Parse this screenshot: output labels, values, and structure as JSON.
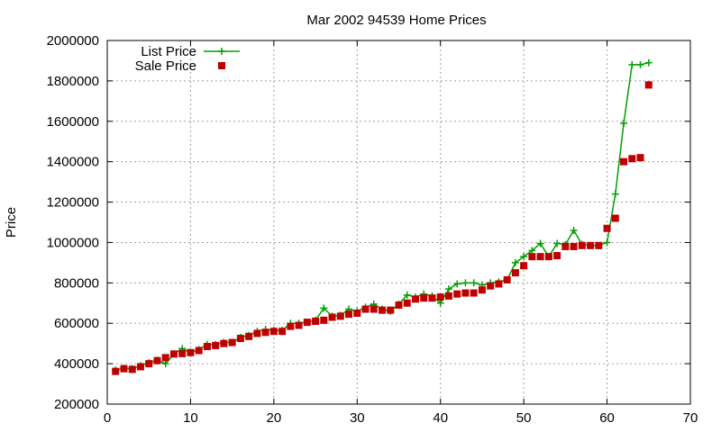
{
  "chart_data": {
    "type": "line",
    "title": "Mar 2002 94539 Home Prices",
    "xlabel": "",
    "ylabel": "Price",
    "xlim": [
      0,
      70
    ],
    "ylim": [
      200000,
      2000000
    ],
    "xticks": [
      "0",
      "10",
      "20",
      "30",
      "40",
      "50",
      "60",
      "70"
    ],
    "yticks": [
      "200000",
      "400000",
      "600000",
      "800000",
      "1000000",
      "1200000",
      "1400000",
      "1600000",
      "1800000",
      "2000000"
    ],
    "grid": true,
    "legend_position": "top-left",
    "series": [
      {
        "name": "List Price",
        "style": "line-plus",
        "color": "#00a000",
        "x": [
          1,
          2,
          3,
          4,
          5,
          6,
          7,
          8,
          9,
          10,
          11,
          12,
          13,
          14,
          15,
          16,
          17,
          18,
          19,
          20,
          21,
          22,
          23,
          24,
          25,
          26,
          27,
          28,
          29,
          30,
          31,
          32,
          33,
          34,
          35,
          36,
          37,
          38,
          39,
          40,
          41,
          42,
          43,
          44,
          45,
          46,
          47,
          48,
          49,
          50,
          51,
          52,
          53,
          54,
          55,
          56,
          57,
          58,
          59,
          60,
          61,
          62,
          63,
          64,
          65
        ],
        "y": [
          368000,
          378000,
          375000,
          390000,
          405000,
          418000,
          400000,
          448000,
          475000,
          455000,
          470000,
          495000,
          495000,
          505000,
          505000,
          530000,
          540000,
          560000,
          570000,
          565000,
          565000,
          600000,
          600000,
          605000,
          615000,
          675000,
          635000,
          640000,
          670000,
          660000,
          680000,
          695000,
          670000,
          660000,
          695000,
          740000,
          730000,
          745000,
          735000,
          700000,
          770000,
          795000,
          800000,
          800000,
          790000,
          800000,
          805000,
          815000,
          900000,
          930000,
          960000,
          995000,
          930000,
          995000,
          990000,
          1060000,
          990000,
          985000,
          985000,
          1000000,
          1240000,
          1590000,
          1880000,
          1880000,
          1890000
        ]
      },
      {
        "name": "Sale Price",
        "style": "square",
        "color": "#c00000",
        "x": [
          1,
          2,
          3,
          4,
          5,
          6,
          7,
          8,
          9,
          10,
          11,
          12,
          13,
          14,
          15,
          16,
          17,
          18,
          19,
          20,
          21,
          22,
          23,
          24,
          25,
          26,
          27,
          28,
          29,
          30,
          31,
          32,
          33,
          34,
          35,
          36,
          37,
          38,
          39,
          40,
          41,
          42,
          43,
          44,
          45,
          46,
          47,
          48,
          49,
          50,
          51,
          52,
          53,
          54,
          55,
          56,
          57,
          58,
          59,
          60,
          61,
          62,
          63,
          64,
          65
        ],
        "y": [
          362000,
          375000,
          372000,
          385000,
          400000,
          415000,
          430000,
          448000,
          450000,
          455000,
          465000,
          485000,
          490000,
          500000,
          505000,
          525000,
          535000,
          550000,
          555000,
          560000,
          560000,
          585000,
          590000,
          605000,
          610000,
          615000,
          630000,
          635000,
          645000,
          650000,
          670000,
          670000,
          665000,
          665000,
          690000,
          700000,
          720000,
          725000,
          725000,
          730000,
          735000,
          745000,
          750000,
          750000,
          765000,
          785000,
          795000,
          815000,
          850000,
          885000,
          930000,
          930000,
          930000,
          935000,
          980000,
          980000,
          985000,
          985000,
          985000,
          1070000,
          1120000,
          1400000,
          1415000,
          1420000,
          1780000
        ]
      }
    ]
  }
}
